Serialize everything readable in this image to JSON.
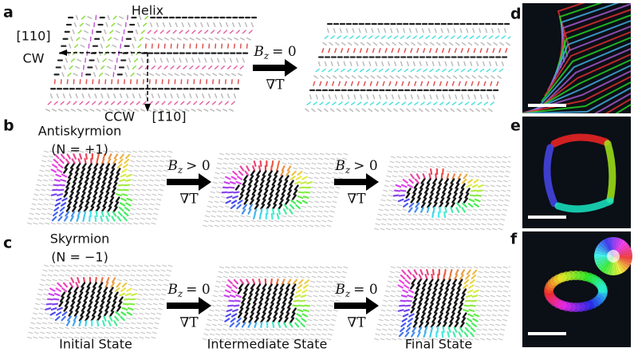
{
  "panel_labels": [
    "a",
    "b",
    "c",
    "d",
    "e",
    "f"
  ],
  "helix": {
    "title": "Helix",
    "axis_x": "[110]",
    "axis_x_sense": "CW",
    "axis_y_sense": "CCW",
    "axis_y": "[1̄10]"
  },
  "rows": [
    {
      "title": "Antiskyrmion",
      "charge": "(N = +1)"
    },
    {
      "title": "Skyrmion",
      "charge": "(N = −1)"
    }
  ],
  "transitions": [
    {
      "field": "B",
      "component": "z",
      "relation": "= 0",
      "driver": "∇T"
    },
    {
      "field": "B",
      "component": "z",
      "relation": "> 0",
      "driver": "∇T"
    },
    {
      "field": "B",
      "component": "z",
      "relation": "> 0",
      "driver": "∇T"
    },
    {
      "field": "B",
      "component": "z",
      "relation": "= 0",
      "driver": "∇T"
    },
    {
      "field": "B",
      "component": "z",
      "relation": "= 0",
      "driver": "∇T"
    }
  ],
  "states": [
    "Initial State",
    "Intermediate State",
    "Final State"
  ]
}
